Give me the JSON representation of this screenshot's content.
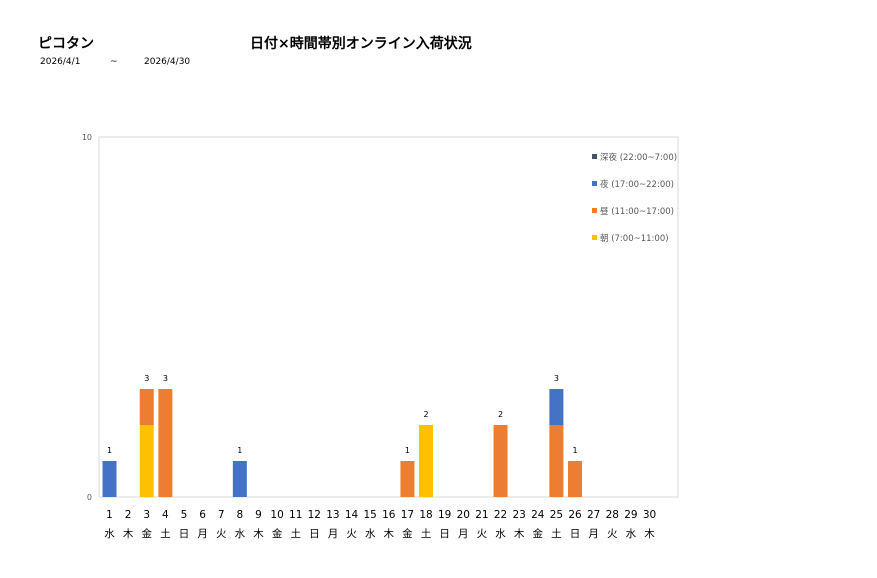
{
  "header": {
    "store_name": "ピコタン",
    "title": "日付×時間帯別オンライン入荷状況",
    "date_from": "2026/4/1",
    "date_sep": "~",
    "date_to": "2026/4/30"
  },
  "chart_data": {
    "type": "bar",
    "stacked": true,
    "ylim": [
      0,
      10
    ],
    "yticks": [
      "0",
      "10"
    ],
    "grid": false,
    "legend_position": "top-right",
    "categories": [
      "1",
      "2",
      "3",
      "4",
      "5",
      "6",
      "7",
      "8",
      "9",
      "10",
      "11",
      "12",
      "13",
      "14",
      "15",
      "16",
      "17",
      "18",
      "19",
      "20",
      "21",
      "22",
      "23",
      "24",
      "25",
      "26",
      "27",
      "28",
      "29",
      "30"
    ],
    "weekdays": [
      "水",
      "木",
      "金",
      "土",
      "日",
      "月",
      "火",
      "水",
      "木",
      "金",
      "土",
      "日",
      "月",
      "火",
      "水",
      "木",
      "金",
      "土",
      "日",
      "月",
      "火",
      "水",
      "木",
      "金",
      "土",
      "日",
      "月",
      "火",
      "水",
      "木"
    ],
    "series": [
      {
        "name": "朝 (7:00~11:00)",
        "color": "#FFC000",
        "values": [
          0,
          0,
          2,
          0,
          0,
          0,
          0,
          0,
          0,
          0,
          0,
          0,
          0,
          0,
          0,
          0,
          0,
          2,
          0,
          0,
          0,
          0,
          0,
          0,
          0,
          0,
          0,
          0,
          0,
          0
        ]
      },
      {
        "name": "昼 (11:00~17:00)",
        "color": "#ED7D31",
        "values": [
          0,
          0,
          1,
          3,
          0,
          0,
          0,
          0,
          0,
          0,
          0,
          0,
          0,
          0,
          0,
          0,
          1,
          0,
          0,
          0,
          0,
          2,
          0,
          0,
          2,
          1,
          0,
          0,
          0,
          0
        ]
      },
      {
        "name": "夜 (17:00~22:00)",
        "color": "#4472C4",
        "values": [
          1,
          0,
          0,
          0,
          0,
          0,
          0,
          1,
          0,
          0,
          0,
          0,
          0,
          0,
          0,
          0,
          0,
          0,
          0,
          0,
          0,
          0,
          0,
          0,
          1,
          0,
          0,
          0,
          0,
          0
        ]
      },
      {
        "name": "深夜 (22:00~7:00)",
        "color": "#44546A",
        "values": [
          0,
          0,
          0,
          0,
          0,
          0,
          0,
          0,
          0,
          0,
          0,
          0,
          0,
          0,
          0,
          0,
          0,
          0,
          0,
          0,
          0,
          0,
          0,
          0,
          0,
          0,
          0,
          0,
          0,
          0
        ]
      }
    ],
    "totals": [
      "1",
      "",
      "3",
      "3",
      "",
      "",
      "",
      "1",
      "",
      "",
      "",
      "",
      "",
      "",
      "",
      "",
      "1",
      "2",
      "",
      "",
      "",
      "2",
      "",
      "",
      "3",
      "1",
      "",
      "",
      "",
      ""
    ],
    "legend_order": [
      3,
      2,
      1,
      0
    ]
  }
}
